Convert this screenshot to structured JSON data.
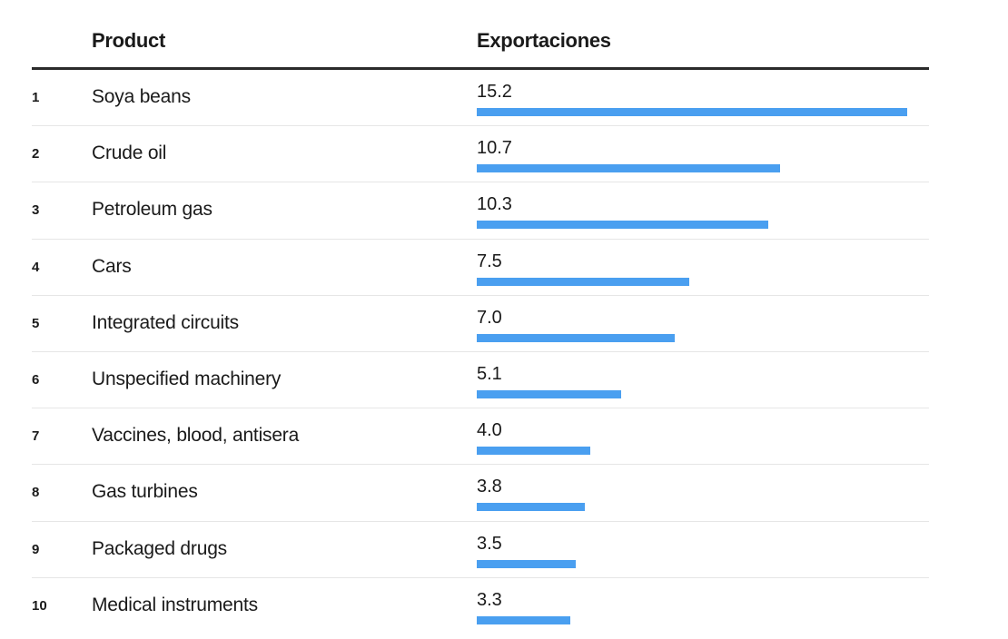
{
  "header": {
    "product_label": "Product",
    "value_label": "Exportaciones"
  },
  "colors": {
    "bar": "#4a9ff0",
    "header_rule": "#2b2b2b",
    "row_divider": "#e6e6e6"
  },
  "chart_data": {
    "type": "bar",
    "orientation": "horizontal",
    "xlabel": "",
    "ylabel": "",
    "xlim": [
      0,
      15.2
    ],
    "categories": [
      "Soya beans",
      "Crude oil",
      "Petroleum gas",
      "Cars",
      "Integrated circuits",
      "Unspecified machinery",
      "Vaccines, blood, antisera",
      "Gas turbines",
      "Packaged drugs",
      "Medical instruments"
    ],
    "ranks": [
      "1",
      "2",
      "3",
      "4",
      "5",
      "6",
      "7",
      "8",
      "9",
      "10"
    ],
    "values": [
      15.2,
      10.7,
      10.3,
      7.5,
      7.0,
      5.1,
      4.0,
      3.8,
      3.5,
      3.3
    ],
    "value_labels": [
      "15.2",
      "10.7",
      "10.3",
      "7.5",
      "7.0",
      "5.1",
      "4.0",
      "3.8",
      "3.5",
      "3.3"
    ]
  }
}
